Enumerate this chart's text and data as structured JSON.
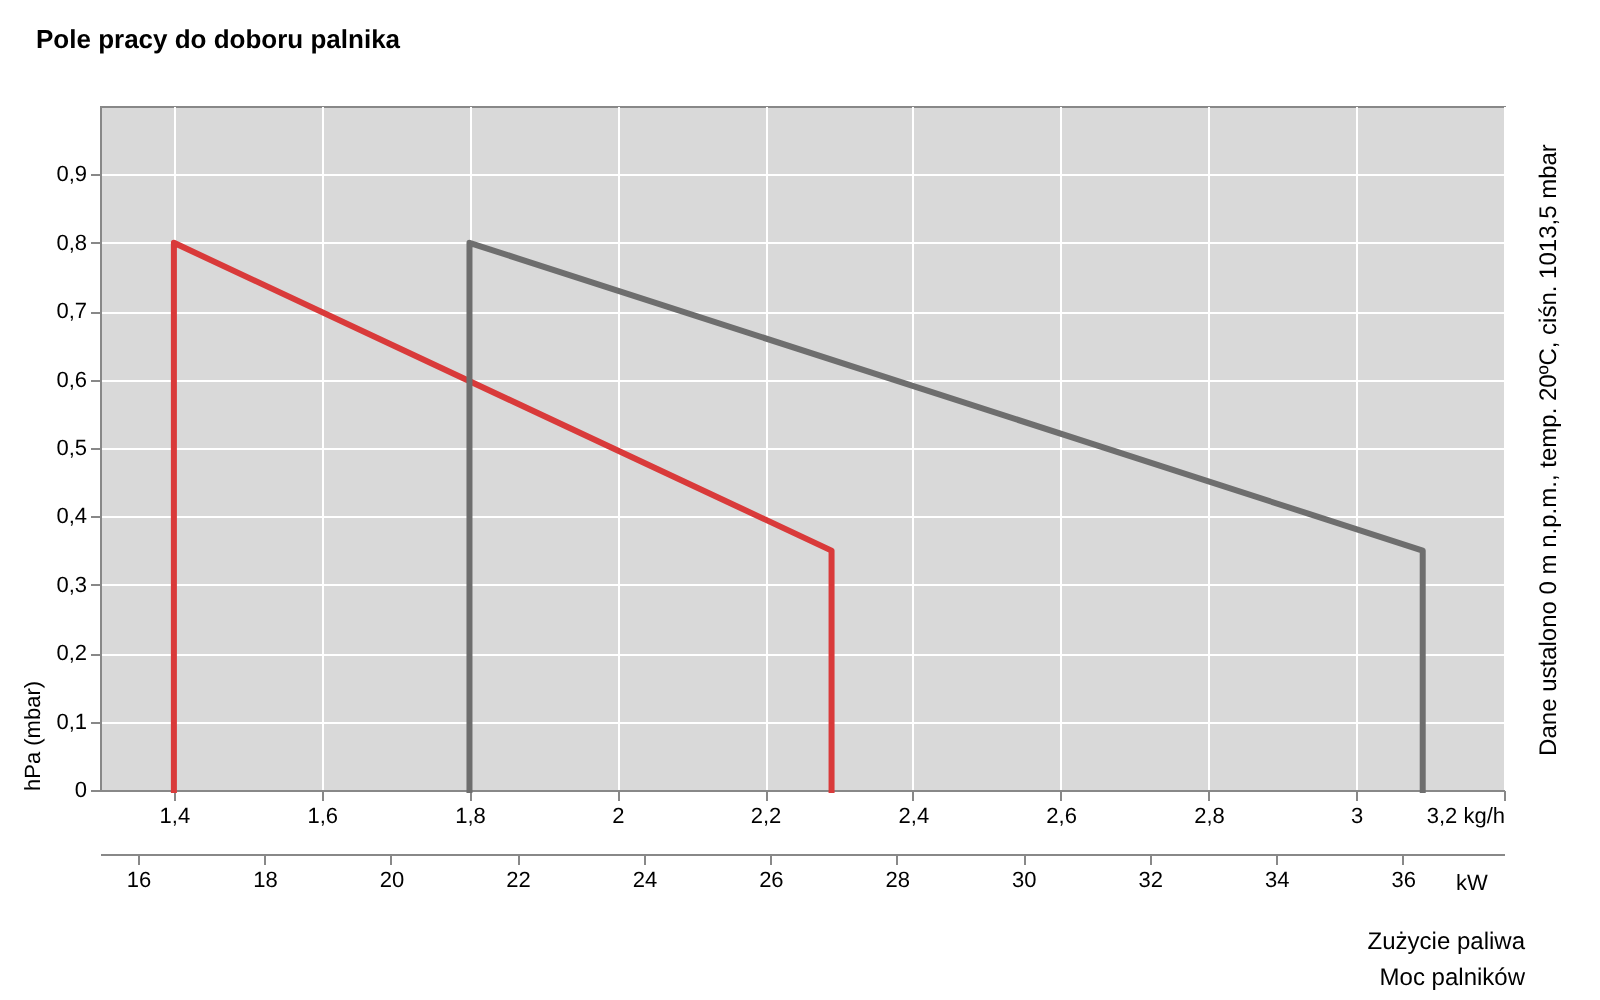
{
  "chart_data": {
    "type": "line",
    "title": "Pole pracy do doboru palnika",
    "xlabel": "Zużycie paliwa",
    "x2label": "Moc palników",
    "ylabel": "hPa (mbar)",
    "annotations": [
      "kW",
      "Dane ustalono 0 m n.p.m., temp. 20ºC, ciśn. 1013,5 mbar"
    ],
    "series": [
      {
        "color": "#d93a3a",
        "x": [
          1.4,
          1.4,
          2.29,
          2.29
        ],
        "values": [
          0,
          0.8,
          0.35,
          0
        ]
      },
      {
        "color": "#6e6e6e",
        "x": [
          1.8,
          1.8,
          3.09,
          3.09
        ],
        "values": [
          0,
          0.8,
          0.35,
          0
        ]
      }
    ],
    "xlim": [
      1.3,
      3.2
    ],
    "xticks": [
      {
        "value": 1.4,
        "label": "1,4"
      },
      {
        "value": 1.6,
        "label": "1,6"
      },
      {
        "value": 1.8,
        "label": "1,8"
      },
      2,
      {
        "value": 2.2,
        "label": "2,2"
      },
      {
        "value": 2.4,
        "label": "2,4"
      },
      {
        "value": 2.6,
        "label": "2,6"
      },
      {
        "value": 2.8,
        "label": "2,8"
      },
      3,
      {
        "value": 3.2,
        "label": "3,2 kg/h"
      }
    ],
    "x2lim": [
      15.4,
      37.6
    ],
    "x2ticks": [
      16,
      18,
      20,
      22,
      24,
      26,
      28,
      30,
      32,
      34,
      36
    ],
    "ylim": [
      0,
      1
    ],
    "yticks": [
      0,
      {
        "value": 0.1,
        "label": "0,1"
      },
      {
        "value": 0.2,
        "label": "0,2"
      },
      {
        "value": 0.3,
        "label": "0,3"
      },
      {
        "value": 0.4,
        "label": "0,4"
      },
      {
        "value": 0.5,
        "label": "0,5"
      },
      {
        "value": 0.6,
        "label": "0,6"
      },
      {
        "value": 0.7,
        "label": "0,7"
      },
      {
        "value": 0.8,
        "label": "0,8"
      },
      {
        "value": 0.9,
        "label": "0,9"
      }
    ],
    "grid": true
  }
}
